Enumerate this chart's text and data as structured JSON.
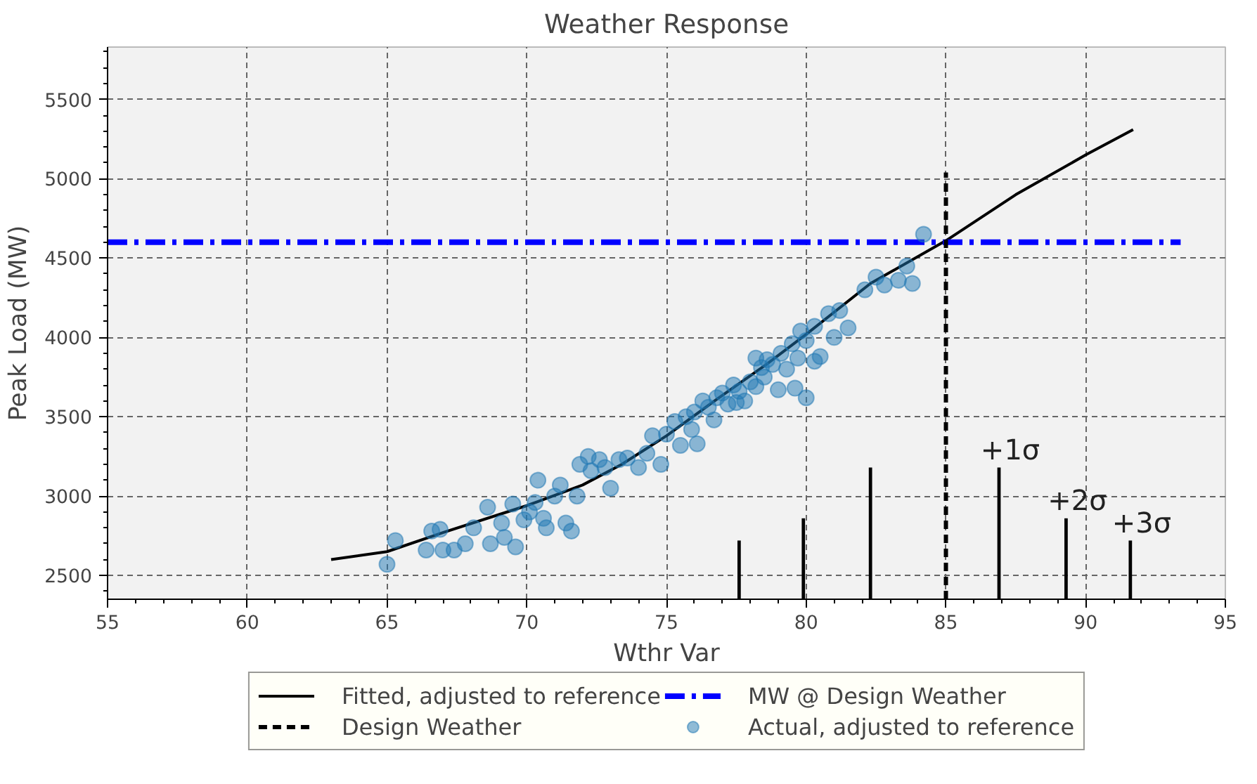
{
  "chart_data": {
    "type": "line",
    "title": "Weather Response",
    "xlabel": "Wthr Var",
    "ylabel": "Peak Load (MW)",
    "xlim": [
      55,
      95
    ],
    "ylim": [
      2350,
      5830
    ],
    "xticks": [
      55,
      60,
      65,
      70,
      75,
      80,
      85,
      90,
      95
    ],
    "yticks": [
      2500,
      3000,
      3500,
      4000,
      4500,
      5000,
      5500
    ],
    "grid": true,
    "legend": "bottom",
    "series": [
      {
        "name": "Fitted, adjusted to reference",
        "color": "#000000",
        "line_style": "solid",
        "x": [
          63,
          65,
          67,
          70,
          72,
          73.4,
          75,
          76.8,
          78.5,
          80,
          82.3,
          85,
          87.5,
          90,
          91.7
        ],
        "values": [
          2600,
          2650,
          2770,
          2940,
          3070,
          3200,
          3380,
          3610,
          3820,
          4020,
          4340,
          4610,
          4900,
          5150,
          5310
        ]
      },
      {
        "name": "MW @ Design Weather",
        "color": "#0000ff",
        "line_style": "dashdot",
        "x": [
          55,
          93.4
        ],
        "values": [
          4600,
          4600
        ]
      },
      {
        "name": "Design Weather",
        "color": "#000000",
        "line_style": "dashed",
        "x": [
          85,
          85
        ],
        "values": [
          2350,
          5040
        ]
      },
      {
        "name": "Actual, adjusted to reference",
        "type": "scatter",
        "color": "#1f77b4",
        "marker": "circle",
        "x": [
          65.0,
          65.3,
          66.4,
          66.6,
          66.9,
          67.0,
          67.4,
          67.8,
          68.1,
          68.6,
          68.7,
          69.1,
          69.2,
          69.5,
          69.6,
          69.9,
          70.1,
          70.3,
          70.4,
          70.6,
          70.7,
          71.0,
          71.2,
          71.4,
          71.6,
          71.8,
          71.9,
          72.2,
          72.3,
          72.6,
          72.8,
          73.0,
          73.3,
          73.6,
          74.0,
          74.3,
          74.5,
          74.8,
          75.0,
          75.3,
          75.5,
          75.7,
          75.9,
          76.0,
          76.1,
          76.3,
          76.5,
          76.7,
          76.8,
          77.0,
          77.2,
          77.4,
          77.6,
          77.8,
          78.0,
          78.2,
          78.4,
          78.5,
          78.6,
          78.8,
          79.0,
          79.1,
          79.3,
          79.5,
          79.6,
          79.8,
          80.0,
          80.0,
          80.3,
          80.5,
          80.8,
          81.0,
          81.2,
          81.5,
          82.1,
          82.5,
          82.8,
          83.3,
          83.6,
          84.2,
          83.8,
          78.2,
          77.5,
          79.7,
          80.3
        ],
        "values": [
          2570,
          2720,
          2660,
          2780,
          2790,
          2660,
          2660,
          2700,
          2800,
          2930,
          2700,
          2830,
          2740,
          2950,
          2680,
          2850,
          2900,
          2960,
          3100,
          2860,
          2800,
          3000,
          3070,
          2830,
          2780,
          3000,
          3200,
          3250,
          3160,
          3230,
          3180,
          3050,
          3230,
          3240,
          3180,
          3270,
          3380,
          3200,
          3390,
          3470,
          3320,
          3500,
          3420,
          3530,
          3330,
          3600,
          3560,
          3480,
          3620,
          3650,
          3580,
          3700,
          3660,
          3600,
          3720,
          3690,
          3810,
          3750,
          3860,
          3830,
          3670,
          3900,
          3800,
          3960,
          3680,
          4040,
          3620,
          3980,
          4070,
          3880,
          4150,
          4000,
          4170,
          4060,
          4300,
          4380,
          4330,
          4360,
          4450,
          4650,
          4340,
          3870,
          3590,
          3870,
          3850
        ]
      },
      {
        "type": "bar",
        "color": "#000000",
        "x": [
          77.6,
          79.9,
          82.3,
          86.9,
          89.3,
          91.6
        ],
        "base": [
          2350,
          2350,
          2350,
          2350,
          2350,
          2350
        ],
        "values": [
          370,
          510,
          830,
          830,
          510,
          370
        ]
      }
    ],
    "annotations": [
      {
        "text": "+1σ",
        "x": 86.9,
        "y": 3180
      },
      {
        "text": "+2σ",
        "x": 89.3,
        "y": 2860
      },
      {
        "text": "+3σ",
        "x": 91.6,
        "y": 2717
      }
    ]
  }
}
